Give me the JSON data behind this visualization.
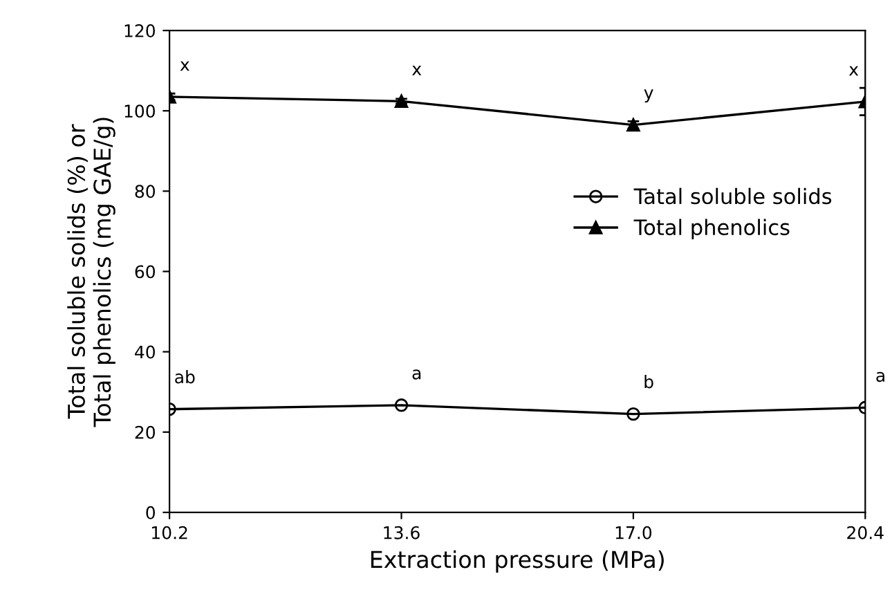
{
  "chart_data": {
    "type": "line",
    "xlabel": "Extraction pressure (MPa)",
    "ylabel": "Total soluble solids (%) or\nTotal phenolics (mg GAE/g)",
    "x": [
      10.2,
      13.6,
      17.0,
      20.4
    ],
    "xlim": [
      10.2,
      20.4
    ],
    "xticks": [
      10.2,
      13.6,
      {
        "value": 17.0,
        "label": "17.0"
      },
      20.4
    ],
    "ylim": [
      0,
      120
    ],
    "yticks": [
      0,
      20,
      40,
      60,
      80,
      100,
      120
    ],
    "series": [
      {
        "name": "Tatal soluble solids",
        "color": "#000000",
        "marker": "circle",
        "values": [
          25.7,
          26.7,
          24.5,
          26.1
        ]
      },
      {
        "name": "Total phenolics",
        "color": "#000000",
        "marker": "triangle",
        "values": [
          103.5,
          102.4,
          96.5,
          102.3
        ],
        "errors": [
          0.8,
          0.6,
          0.9,
          3.4
        ]
      }
    ],
    "annotations": [
      "x",
      "x",
      "y",
      "x",
      "ab",
      "a",
      "b",
      "a"
    ],
    "grid": false,
    "legend": "right"
  }
}
